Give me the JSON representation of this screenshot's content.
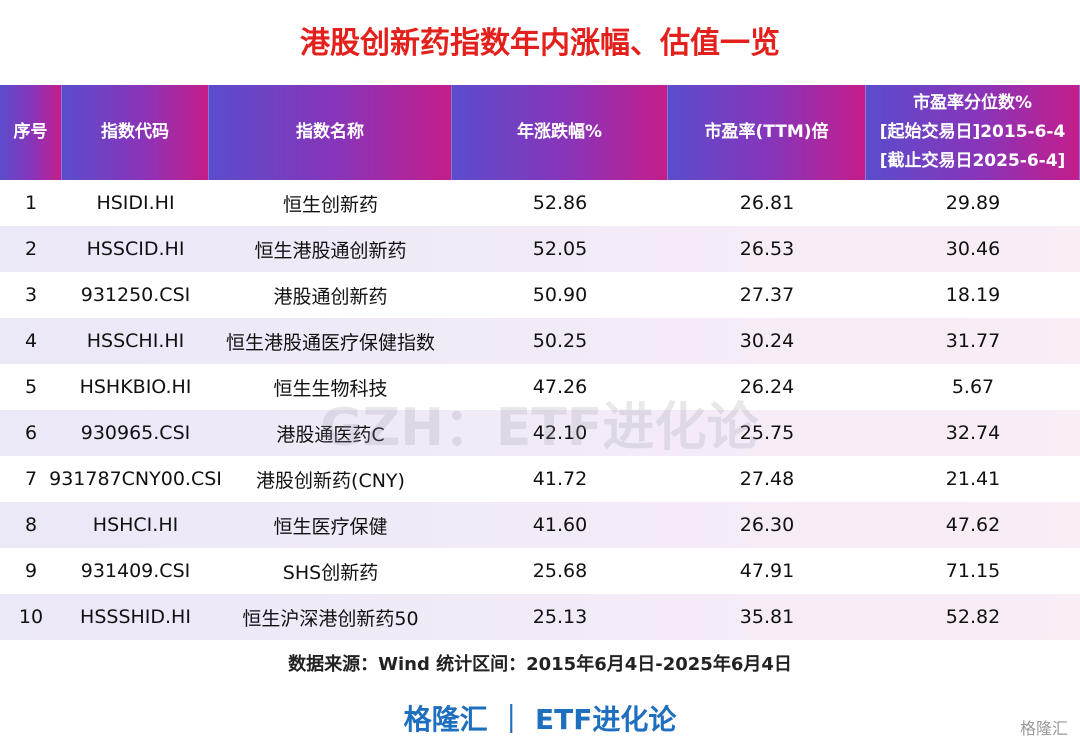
{
  "title": "港股创新药指数年内涨幅、估值一览",
  "table": {
    "header": [
      [
        "序号"
      ],
      [
        "指数代码"
      ],
      [
        "指数名称"
      ],
      [
        "年涨跌幅%"
      ],
      [
        "市盈率(TTM)倍"
      ],
      [
        "市盈率分位数%",
        "[起始交易日]2015-6-4",
        "[截止交易日2025-6-4]"
      ]
    ],
    "rows": [
      [
        "1",
        "HSIDI.HI",
        "恒生创新药",
        "52.86",
        "26.81",
        "29.89"
      ],
      [
        "2",
        "HSSCID.HI",
        "恒生港股通创新药",
        "52.05",
        "26.53",
        "30.46"
      ],
      [
        "3",
        "931250.CSI",
        "港股通创新药",
        "50.90",
        "27.37",
        "18.19"
      ],
      [
        "4",
        "HSSCHI.HI",
        "恒生港股通医疗保健指数",
        "50.25",
        "30.24",
        "31.77"
      ],
      [
        "5",
        "HSHKBIO.HI",
        "恒生生物科技",
        "47.26",
        "26.24",
        "5.67"
      ],
      [
        "6",
        "930965.CSI",
        "港股通医药C",
        "42.10",
        "25.75",
        "32.74"
      ],
      [
        "7",
        "931787CNY00.CSI",
        "港股创新药(CNY)",
        "41.72",
        "27.48",
        "21.41"
      ],
      [
        "8",
        "HSHCI.HI",
        "恒生医疗保健",
        "41.60",
        "26.30",
        "47.62"
      ],
      [
        "9",
        "931409.CSI",
        "SHS创新药",
        "25.68",
        "47.91",
        "71.15"
      ],
      [
        "10",
        "HSSSHID.HI",
        "恒生沪深港创新药50",
        "25.13",
        "35.81",
        "52.82"
      ]
    ]
  },
  "source": "数据来源：Wind 统计区间：2015年6月4日-2025年6月4日",
  "brand": "格隆汇 ｜ ETF进化论",
  "watermark": "GZH：ETF进化论",
  "logo": "格隆汇"
}
